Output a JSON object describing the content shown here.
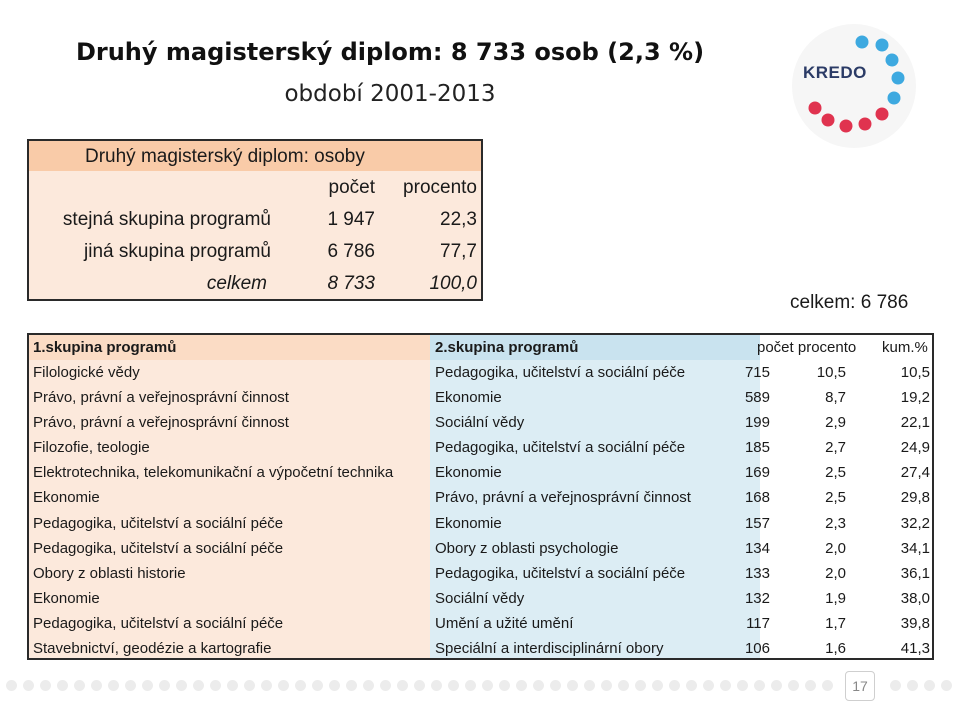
{
  "title": "Druhý magisterský diplom: 8 733 osob (2,3 %)",
  "subtitle": "období 2001-2013",
  "logo": {
    "text": "KREDO",
    "icon": "kredo-dots-ring-logo"
  },
  "summary": {
    "heading": "Druhý magisterský diplom: osoby",
    "col_count": "počet",
    "col_percent": "procento",
    "rows": [
      {
        "label": "stejná skupina programů",
        "count": "1 947",
        "percent": "22,3"
      },
      {
        "label": "jiná skupina programů",
        "count": "6 786",
        "percent": "77,7"
      },
      {
        "label": "celkem",
        "count": "8 733",
        "percent": "100,0"
      }
    ]
  },
  "total_note": "celkem: 6 786",
  "detail": {
    "headers": {
      "group1": "1.skupina programů",
      "group2": "2.skupina programů",
      "count": "počet",
      "percent": "procento",
      "cum": "kum.%"
    },
    "rows": [
      {
        "g1": "Filologické vědy",
        "g2": "Pedagogika, učitelství a sociální péče",
        "count": "715",
        "percent": "10,5",
        "cum": "10,5"
      },
      {
        "g1": "Právo, právní a veřejnosprávní činnost",
        "g2": "Ekonomie",
        "count": "589",
        "percent": "8,7",
        "cum": "19,2"
      },
      {
        "g1": "Právo, právní a veřejnosprávní činnost",
        "g2": "Sociální vědy",
        "count": "199",
        "percent": "2,9",
        "cum": "22,1"
      },
      {
        "g1": "Filozofie, teologie",
        "g2": "Pedagogika, učitelství a sociální péče",
        "count": "185",
        "percent": "2,7",
        "cum": "24,9"
      },
      {
        "g1": "Elektrotechnika, telekomunikační a výpočetní technika",
        "g2": "Ekonomie",
        "count": "169",
        "percent": "2,5",
        "cum": "27,4"
      },
      {
        "g1": "Ekonomie",
        "g2": "Právo, právní a veřejnosprávní činnost",
        "count": "168",
        "percent": "2,5",
        "cum": "29,8"
      },
      {
        "g1": "Pedagogika, učitelství a sociální péče",
        "g2": "Ekonomie",
        "count": "157",
        "percent": "2,3",
        "cum": "32,2"
      },
      {
        "g1": "Pedagogika, učitelství a sociální péče",
        "g2": "Obory z oblasti psychologie",
        "count": "134",
        "percent": "2,0",
        "cum": "34,1"
      },
      {
        "g1": "Obory z oblasti historie",
        "g2": "Pedagogika, učitelství a sociální péče",
        "count": "133",
        "percent": "2,0",
        "cum": "36,1"
      },
      {
        "g1": "Ekonomie",
        "g2": "Sociální vědy",
        "count": "132",
        "percent": "1,9",
        "cum": "38,0"
      },
      {
        "g1": "Pedagogika, učitelství a sociální péče",
        "g2": "Umění a užité umění",
        "count": "117",
        "percent": "1,7",
        "cum": "39,8"
      },
      {
        "g1": "Stavebnictví, geodézie a kartografie",
        "g2": "Speciální a interdisciplinární obory",
        "count": "106",
        "percent": "1,6",
        "cum": "41,3"
      }
    ]
  },
  "page_number": "17",
  "colors": {
    "summary_header": "#f9cba8",
    "summary_body": "#fce9dc",
    "col1_bg": "#fce9dc",
    "col2_bg": "#dcedf4",
    "logo_blue": "#3da9e0",
    "logo_red": "#e0334f"
  }
}
